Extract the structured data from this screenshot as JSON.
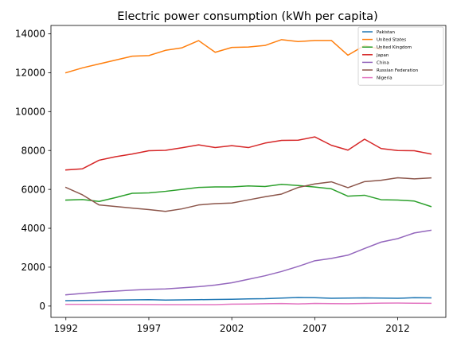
{
  "chart_data": {
    "type": "line",
    "title": "Electric power consumption (kWh per capita)",
    "xlabel": "",
    "ylabel": "",
    "x": [
      1992,
      1993,
      1994,
      1995,
      1996,
      1997,
      1998,
      1999,
      2000,
      2001,
      2002,
      2003,
      2004,
      2005,
      2006,
      2007,
      2008,
      2009,
      2010,
      2011,
      2012,
      2013,
      2014
    ],
    "xlim": [
      1991.1,
      2014.9
    ],
    "ylim": [
      -580,
      14430
    ],
    "xticks": [
      1992,
      1997,
      2002,
      2007,
      2012
    ],
    "yticks": [
      0,
      2000,
      4000,
      6000,
      8000,
      10000,
      12000,
      14000
    ],
    "grid": false,
    "legend_position": "top-right",
    "series": [
      {
        "name": "Pakistan",
        "color": "#1f77b4",
        "values": [
          280,
          290,
          300,
          310,
          320,
          330,
          310,
          320,
          330,
          340,
          350,
          370,
          380,
          410,
          440,
          430,
          400,
          410,
          420,
          410,
          400,
          430,
          420
        ]
      },
      {
        "name": "United States",
        "color": "#ff7f0e",
        "values": [
          12000,
          12250,
          12450,
          12650,
          12850,
          12880,
          13150,
          13280,
          13650,
          13050,
          13300,
          13320,
          13400,
          13700,
          13600,
          13660,
          13660,
          12900,
          13400,
          13200,
          null,
          null,
          null
        ]
      },
      {
        "name": "United Kingdom",
        "color": "#2ca02c",
        "values": [
          5450,
          5480,
          5380,
          5580,
          5800,
          5820,
          5900,
          6000,
          6100,
          6130,
          6130,
          6180,
          6150,
          6260,
          6200,
          6120,
          6030,
          5650,
          5700,
          5470,
          5450,
          5400,
          5120
        ]
      },
      {
        "name": "Japan",
        "color": "#d62728",
        "values": [
          7000,
          7060,
          7500,
          7680,
          7820,
          7990,
          8010,
          8140,
          8290,
          8150,
          8250,
          8150,
          8380,
          8520,
          8530,
          8700,
          8270,
          8020,
          8580,
          8100,
          8000,
          7990,
          7820
        ]
      },
      {
        "name": "China",
        "color": "#9467bd",
        "values": [
          580,
          650,
          720,
          770,
          820,
          860,
          880,
          940,
          1000,
          1080,
          1200,
          1380,
          1560,
          1780,
          2040,
          2330,
          2450,
          2620,
          2960,
          3290,
          3470,
          3760,
          3900
        ]
      },
      {
        "name": "Russian Federation",
        "color": "#8c564b",
        "values": [
          6100,
          5720,
          5200,
          5120,
          5040,
          4960,
          4870,
          5000,
          5200,
          5270,
          5300,
          5460,
          5620,
          5760,
          6100,
          6280,
          6390,
          6090,
          6400,
          6470,
          6600,
          6540,
          6590
        ]
      },
      {
        "name": "Nigeria",
        "color": "#e377c2",
        "values": [
          90,
          92,
          88,
          85,
          82,
          80,
          76,
          75,
          73,
          74,
          100,
          105,
          120,
          130,
          110,
          135,
          128,
          120,
          135,
          150,
          155,
          145,
          140
        ]
      }
    ]
  }
}
